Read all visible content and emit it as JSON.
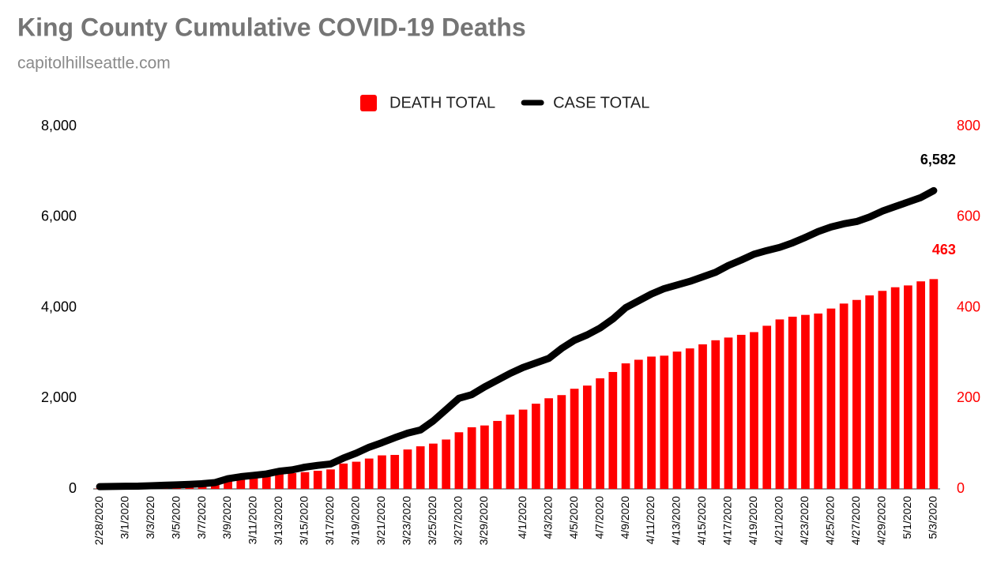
{
  "chart_data": {
    "type": "combo",
    "title": "King County Cumulative COVID-19 Deaths",
    "subtitle": "capitolhillseattle.com",
    "categories": [
      "2/28/2020",
      null,
      "3/1/2020",
      null,
      "3/3/2020",
      null,
      "3/5/2020",
      null,
      "3/7/2020",
      null,
      "3/9/2020",
      null,
      "3/11/2020",
      null,
      "3/13/2020",
      null,
      "3/15/2020",
      null,
      "3/17/2020",
      null,
      "3/19/2020",
      null,
      "3/21/2020",
      null,
      "3/23/2020",
      null,
      "3/25/2020",
      null,
      "3/27/2020",
      null,
      "3/29/2020",
      null,
      null,
      "4/1/2020",
      null,
      "4/3/2020",
      null,
      "4/5/2020",
      null,
      "4/7/2020",
      null,
      "4/9/2020",
      null,
      "4/11/2020",
      null,
      "4/13/2020",
      null,
      "4/15/2020",
      null,
      "4/17/2020",
      null,
      "4/19/2020",
      null,
      "4/21/2020",
      null,
      "4/23/2020",
      null,
      "4/25/2020",
      null,
      "4/27/2020",
      null,
      "4/29/2020",
      null,
      "5/1/2020",
      null,
      "5/3/2020"
    ],
    "series": [
      {
        "name": "DEATH TOTAL",
        "type": "bar",
        "axis": "y2",
        "color": "#ff0000",
        "values": [
          1,
          1,
          3,
          5,
          8,
          9,
          10,
          11,
          13,
          15,
          17,
          22,
          26,
          31,
          33,
          35,
          37,
          40,
          43,
          56,
          60,
          67,
          74,
          75,
          87,
          94,
          100,
          109,
          125,
          136,
          140,
          150,
          164,
          175,
          188,
          200,
          207,
          221,
          228,
          244,
          258,
          277,
          285,
          292,
          294,
          303,
          310,
          319,
          328,
          334,
          340,
          346,
          360,
          374,
          380,
          384,
          387,
          398,
          409,
          417,
          427,
          437,
          445,
          449,
          458,
          463
        ],
        "value_labels": [
          null,
          null,
          null,
          null,
          null,
          null,
          null,
          null,
          null,
          null,
          null,
          null,
          null,
          null,
          null,
          null,
          null,
          null,
          null,
          null,
          null,
          null,
          null,
          null,
          null,
          null,
          null,
          null,
          null,
          null,
          null,
          null,
          null,
          null,
          null,
          null,
          null,
          null,
          null,
          null,
          null,
          null,
          null,
          null,
          null,
          null,
          null,
          null,
          null,
          null,
          null,
          null,
          null,
          null,
          null,
          null,
          null,
          null,
          null,
          null,
          null,
          null,
          null,
          null,
          null,
          "463"
        ]
      },
      {
        "name": "CASE TOTAL",
        "type": "line",
        "axis": "y",
        "color": "#000000",
        "values": [
          50,
          55,
          58,
          60,
          70,
          80,
          90,
          100,
          115,
          140,
          225,
          270,
          300,
          330,
          390,
          420,
          480,
          520,
          550,
          680,
          790,
          920,
          1020,
          1130,
          1230,
          1300,
          1500,
          1750,
          2000,
          2080,
          2250,
          2400,
          2550,
          2680,
          2780,
          2880,
          3100,
          3280,
          3400,
          3550,
          3750,
          4000,
          4150,
          4300,
          4420,
          4500,
          4580,
          4680,
          4780,
          4930,
          5050,
          5180,
          5260,
          5330,
          5430,
          5550,
          5680,
          5780,
          5850,
          5900,
          6000,
          6130,
          6230,
          6330,
          6430,
          6582
        ],
        "value_labels": [
          null,
          null,
          null,
          null,
          null,
          null,
          null,
          null,
          null,
          null,
          null,
          null,
          null,
          null,
          null,
          null,
          null,
          null,
          null,
          null,
          null,
          null,
          null,
          null,
          null,
          null,
          null,
          null,
          null,
          null,
          null,
          null,
          null,
          null,
          null,
          null,
          null,
          null,
          null,
          null,
          null,
          null,
          null,
          null,
          null,
          null,
          null,
          null,
          null,
          null,
          null,
          null,
          null,
          null,
          null,
          null,
          null,
          null,
          null,
          null,
          null,
          null,
          null,
          null,
          null,
          "6,582"
        ]
      }
    ],
    "ylim": [
      0,
      8000
    ],
    "yticks": [
      {
        "value": 0,
        "label": "0"
      },
      {
        "value": 2000,
        "label": "2,000"
      },
      {
        "value": 4000,
        "label": "4,000"
      },
      {
        "value": 6000,
        "label": "6,000"
      },
      {
        "value": 8000,
        "label": "8,000"
      }
    ],
    "y2lim": [
      0,
      800
    ],
    "y2ticks": [
      0,
      200,
      400,
      600,
      800
    ],
    "legend": "top"
  }
}
